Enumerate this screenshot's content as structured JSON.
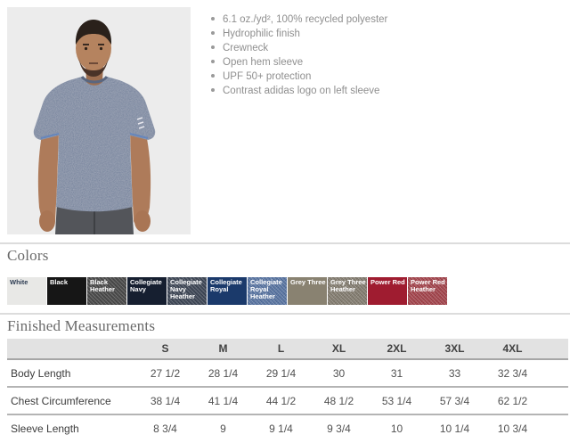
{
  "product": {
    "features": [
      "6.1 oz./yd², 100% recycled polyester",
      "Hydrophilic finish",
      "Crewneck",
      "Open hem sleeve",
      "UPF 50+ protection",
      "Contrast adidas logo on left sleeve"
    ],
    "photo_colors": {
      "background": "#ececec",
      "shirt_heather_blue": "#6d7b97",
      "skin": "#b07d5d",
      "hair": "#2a211b",
      "pants": "#53555a"
    }
  },
  "colors_section": {
    "title": "Colors",
    "swatches": [
      {
        "name": "White",
        "bg": "#e8e8e6",
        "text_color": "#2c3b52",
        "heather": false
      },
      {
        "name": "Black",
        "bg": "#161616",
        "text_color": "#ffffff",
        "heather": false
      },
      {
        "name": "Black Heather",
        "bg": "#4e4e4e",
        "text_color": "#ffffff",
        "heather": true
      },
      {
        "name": "Collegiate Navy",
        "bg": "#161f30",
        "text_color": "#ffffff",
        "heather": false
      },
      {
        "name": "Collegiate Navy Heather",
        "bg": "#434c5c",
        "text_color": "#ffffff",
        "heather": true
      },
      {
        "name": "Collegiate Royal",
        "bg": "#1b3a6b",
        "text_color": "#ffffff",
        "heather": false
      },
      {
        "name": "Collegiate Royal Heather",
        "bg": "#5f7cab",
        "text_color": "#ffffff",
        "heather": true
      },
      {
        "name": "Grey Three",
        "bg": "#898271",
        "text_color": "#ffffff",
        "heather": false
      },
      {
        "name": "Grey Three Heather",
        "bg": "#8b8477",
        "text_color": "#ffffff",
        "heather": true
      },
      {
        "name": "Power Red",
        "bg": "#9f1c30",
        "text_color": "#ffffff",
        "heather": false
      },
      {
        "name": "Power Red Heather",
        "bg": "#ad4a52",
        "text_color": "#ffffff",
        "heather": true
      }
    ]
  },
  "measurements_section": {
    "title": "Finished Measurements",
    "columns": [
      "S",
      "M",
      "L",
      "XL",
      "2XL",
      "3XL",
      "4XL"
    ],
    "rows": [
      {
        "label": "Body Length",
        "values": [
          "27 1/2",
          "28 1/4",
          "29 1/4",
          "30",
          "31",
          "33",
          "32 3/4"
        ]
      },
      {
        "label": "Chest Circumference",
        "values": [
          "38 1/4",
          "41 1/4",
          "44 1/2",
          "48 1/2",
          "53 1/4",
          "57 3/4",
          "62 1/2"
        ]
      },
      {
        "label": "Sleeve Length",
        "values": [
          "8 3/4",
          "9",
          "9 1/4",
          "9 3/4",
          "10",
          "10 1/4",
          "10 3/4"
        ]
      }
    ]
  }
}
